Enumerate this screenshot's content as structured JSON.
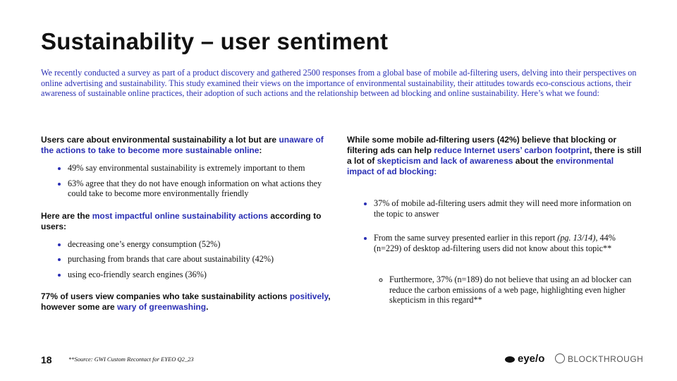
{
  "title": "Sustainability – user sentiment",
  "intro": "We recently conducted a survey as part of a product discovery and gathered 2500 responses from a global base of mobile ad-filtering users, delving into their perspectives on online advertising and sustainability. This study examined their views on the importance of environmental sustainability, their attitudes towards eco-conscious actions, their awareness of sustainable online practices, their adoption of such actions and the relationship between ad blocking and online sustainability. Here’s what we found:",
  "columns": [
    {
      "blocks": [
        {
          "heading": [
            {
              "text": "Users care about environmental sustainability a lot but are "
            },
            {
              "text": "unaware of the actions to take to become more sustainable online",
              "color": "#2a2fb4"
            },
            {
              "text": ":"
            }
          ],
          "items": [
            {
              "segments": [
                {
                  "text": "49% say environmental sustainability is extremely important to them"
                }
              ]
            },
            {
              "segments": [
                {
                  "text": "63% agree that they do not have enough information on what actions they could take to become more environmentally friendly"
                }
              ]
            }
          ]
        },
        {
          "heading": [
            {
              "text": "Here are the "
            },
            {
              "text": "most impactful online sustainability actions",
              "color": "#2a2fb4"
            },
            {
              "text": " according to users:"
            }
          ],
          "items": [
            {
              "segments": [
                {
                  "text": "decreasing one’s energy consumption (52%)"
                }
              ]
            },
            {
              "segments": [
                {
                  "text": "purchasing from brands that care about sustainability (42%)"
                }
              ]
            },
            {
              "segments": [
                {
                  "text": "using eco-friendly search engines (36%)"
                }
              ]
            }
          ]
        },
        {
          "heading": [
            {
              "text": "77% of users view companies who take sustainability actions "
            },
            {
              "text": "positively",
              "color": "#2a2fb4"
            },
            {
              "text": ", however some are "
            },
            {
              "text": "wary of greenwashing",
              "color": "#2a2fb4"
            },
            {
              "text": "."
            }
          ]
        }
      ]
    },
    {
      "blocks": [
        {
          "heading": [
            {
              "text": "While some mobile ad-filtering users (42%) believe that blocking or filtering ads can help "
            },
            {
              "text": "reduce Internet users’ carbon footprint",
              "color": "#2a2fb4"
            },
            {
              "text": ", there is still a lot of "
            },
            {
              "text": "skepticism and lack of awareness",
              "color": "#2a2fb4"
            },
            {
              "text": " about the "
            },
            {
              "text": "environmental impact of ad blocking:",
              "color": "#2a2fb4"
            }
          ],
          "items": [
            {
              "segments": [
                {
                  "text": "37% of mobile ad-filtering users admit they will need more information on the topic to answer"
                }
              ]
            },
            {
              "segments": [
                {
                  "text": "From the same survey presented earlier in this report "
                },
                {
                  "text": "(pg. 13/14)",
                  "italic": true
                },
                {
                  "text": ", 44% (n=229) of desktop ad-filtering users did not know about this topic**"
                }
              ],
              "children": [
                {
                  "segments": [
                    {
                      "text": "Furthermore, 37% (n=189) do not believe that using an ad blocker can reduce the carbon emissions of a web page, highlighting even higher skepticism in this regard**"
                    }
                  ]
                }
              ]
            }
          ]
        }
      ]
    }
  ],
  "footer": {
    "page": "18",
    "source": "**Source: GWI Custom Recontact for EYEO Q2_23",
    "logos": [
      "eye/o",
      "BLOCKTHROUGH"
    ]
  }
}
